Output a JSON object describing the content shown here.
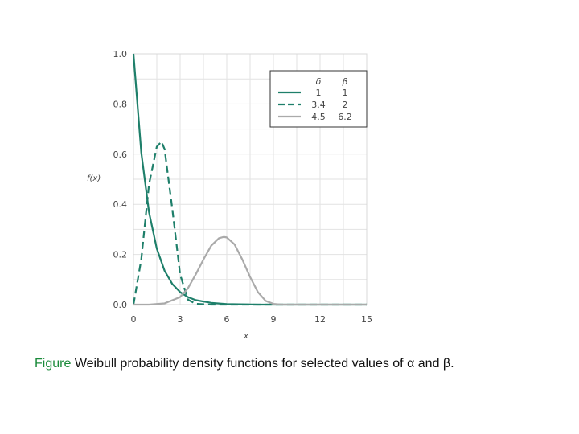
{
  "chart_data": {
    "type": "line",
    "xlabel": "x",
    "ylabel": "f(x)",
    "xlim": [
      0,
      15
    ],
    "ylim": [
      0,
      1.0
    ],
    "xticks": [
      0,
      3,
      6,
      9,
      12,
      15
    ],
    "yticks": [
      0.0,
      0.2,
      0.4,
      0.6,
      0.8,
      1.0
    ],
    "xtick_labels": [
      "0",
      "3",
      "6",
      "9",
      "12",
      "15"
    ],
    "ytick_labels": [
      "0.0",
      "0.2",
      "0.4",
      "0.6",
      "0.8",
      "1.0"
    ],
    "grid": true,
    "legend_position": "top-right",
    "legend_header": [
      "δ",
      "β"
    ],
    "series": [
      {
        "delta": "1",
        "beta": "1",
        "style": "solid",
        "color": "#1e7f6a",
        "x": [
          0,
          0.5,
          1,
          1.5,
          2,
          2.5,
          3,
          3.5,
          4,
          5,
          6,
          8,
          15
        ],
        "y": [
          1.0,
          0.607,
          0.368,
          0.223,
          0.135,
          0.082,
          0.05,
          0.03,
          0.018,
          0.007,
          0.002,
          0.0,
          0.0
        ]
      },
      {
        "delta": "3.4",
        "beta": "2",
        "style": "dashed",
        "color": "#1e7f6a",
        "x": [
          0,
          0.5,
          1,
          1.5,
          1.8,
          2,
          2.5,
          3,
          3.5,
          4,
          5,
          15
        ],
        "y": [
          0.0,
          0.18,
          0.48,
          0.63,
          0.65,
          0.62,
          0.38,
          0.12,
          0.02,
          0.003,
          0.0,
          0.0
        ]
      },
      {
        "delta": "4.5",
        "beta": "6.2",
        "style": "solid",
        "color": "#aaaaaa",
        "x": [
          0,
          1,
          2,
          3,
          3.5,
          4,
          4.5,
          5,
          5.5,
          5.8,
          6,
          6.5,
          7,
          7.5,
          8,
          8.5,
          9,
          9.5,
          10,
          15
        ],
        "y": [
          0.0,
          0.0,
          0.005,
          0.03,
          0.065,
          0.12,
          0.18,
          0.235,
          0.265,
          0.27,
          0.268,
          0.24,
          0.18,
          0.11,
          0.05,
          0.015,
          0.003,
          0.0,
          0.0,
          0.0
        ]
      }
    ]
  },
  "caption": {
    "prefix": "Figure",
    "text": "Weibull probability density functions for selected values of α and β."
  }
}
